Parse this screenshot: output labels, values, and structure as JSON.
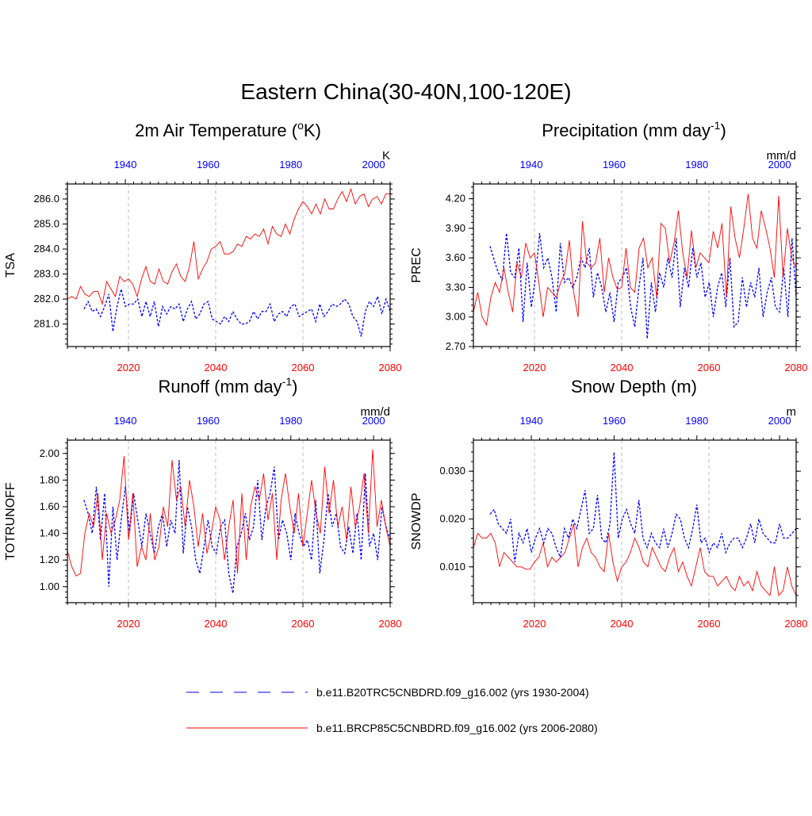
{
  "title": "Eastern China(30-40N,100-120E)",
  "colors": {
    "historical": "#0000ff",
    "future": "#ff0000",
    "frame": "#000000",
    "grid": "#bbbbbb"
  },
  "chart_data": [
    {
      "type": "line",
      "title": "2m Air Temperature (",
      "title_sup": "o",
      "title_tail": "K)",
      "ylabel": "TSA",
      "units": "K",
      "ylim": [
        280.1,
        286.6
      ],
      "yticks": [
        281.0,
        282.0,
        283.0,
        284.0,
        285.0,
        286.0
      ],
      "ytick_labels": [
        "281.0",
        "282.0",
        "283.0",
        "284.0",
        "285.0",
        "286.0"
      ],
      "top_axis": {
        "range": [
          1926,
          2004
        ],
        "ticks": [
          1940,
          1960,
          1980,
          2000
        ],
        "labels": [
          "1940",
          "1960",
          "1980",
          "2000"
        ],
        "color": "#0000ff"
      },
      "bottom_axis": {
        "range": [
          2006,
          2080
        ],
        "ticks": [
          2020,
          2040,
          2060,
          2080
        ],
        "labels": [
          "2020",
          "2040",
          "2060",
          "2080"
        ],
        "color": "#ff0000"
      },
      "series": [
        {
          "name": "b.e11.B20TRC5CNBDRD.f09_g16.002 (yrs 1930-2004)",
          "color": "#0000ff",
          "dash": true,
          "start": 1930,
          "values": [
            281.6,
            281.9,
            281.5,
            281.6,
            281.3,
            281.7,
            282.2,
            280.7,
            281.7,
            282.4,
            281.7,
            281.8,
            281.8,
            282.0,
            281.3,
            281.9,
            281.3,
            281.9,
            280.9,
            281.7,
            281.4,
            281.7,
            281.6,
            281.8,
            281.1,
            281.6,
            281.9,
            281.2,
            281.4,
            281.8,
            281.9,
            281.2,
            281.1,
            281.0,
            281.3,
            281.1,
            281.5,
            281.2,
            281.0,
            281.0,
            281.1,
            281.5,
            281.2,
            281.5,
            281.5,
            281.8,
            281.1,
            281.4,
            281.5,
            281.3,
            281.7,
            281.8,
            281.3,
            281.4,
            281.5,
            281.6,
            281.1,
            281.8,
            281.3,
            281.5,
            281.8,
            281.7,
            281.8,
            282.0,
            281.8,
            281.3,
            281.1,
            280.5,
            281.5,
            281.9,
            281.7,
            282.1,
            281.4,
            282.0,
            281.5
          ]
        },
        {
          "name": "b.e11.BRCP85C5CNBDRD.f09_g16.002 (yrs 2006-2080)",
          "color": "#ff0000",
          "dash": false,
          "start": 2006,
          "values": [
            282.0,
            282.1,
            282.0,
            282.5,
            282.2,
            282.1,
            282.3,
            282.3,
            281.8,
            282.7,
            282.4,
            282.1,
            282.9,
            282.7,
            282.8,
            282.6,
            282.1,
            282.8,
            283.3,
            282.7,
            282.6,
            283.2,
            282.7,
            282.6,
            283.1,
            283.4,
            282.9,
            282.7,
            283.3,
            284.3,
            282.8,
            283.2,
            283.5,
            284.0,
            284.1,
            284.3,
            283.8,
            283.8,
            283.9,
            284.2,
            284.1,
            284.5,
            284.4,
            284.6,
            284.5,
            284.8,
            284.2,
            284.9,
            284.6,
            284.5,
            285.0,
            284.6,
            285.2,
            285.6,
            285.9,
            285.7,
            285.4,
            285.8,
            285.4,
            286.0,
            285.6,
            285.6,
            286.0,
            286.3,
            285.9,
            286.4,
            285.8,
            286.1,
            286.2,
            285.7,
            286.0,
            286.1,
            285.8,
            286.2,
            286.2
          ]
        }
      ]
    },
    {
      "type": "line",
      "title": "Precipitation (mm day",
      "title_sup": "-1",
      "title_tail": ")",
      "ylabel": "PREC",
      "units": "mm/d",
      "ylim": [
        2.7,
        4.35
      ],
      "yticks": [
        2.7,
        3.0,
        3.3,
        3.6,
        3.9,
        4.2
      ],
      "ytick_labels": [
        "2.70",
        "3.00",
        "3.30",
        "3.60",
        "3.90",
        "4.20"
      ],
      "top_axis": {
        "range": [
          1926,
          2004
        ],
        "ticks": [
          1940,
          1960,
          1980,
          2000
        ],
        "labels": [
          "1940",
          "1960",
          "1980",
          "2000"
        ],
        "color": "#0000ff"
      },
      "bottom_axis": {
        "range": [
          2006,
          2080
        ],
        "ticks": [
          2020,
          2040,
          2060,
          2080
        ],
        "labels": [
          "2020",
          "2040",
          "2060",
          "2080"
        ],
        "color": "#ff0000"
      },
      "series": [
        {
          "name": "b.e11.B20TRC5CNBDRD.f09_g16.002 (yrs 1930-2004)",
          "color": "#0000ff",
          "dash": true,
          "start": 1930,
          "values": [
            3.72,
            3.58,
            3.45,
            3.38,
            3.85,
            3.45,
            3.4,
            3.7,
            2.95,
            3.55,
            3.1,
            3.4,
            3.85,
            3.5,
            3.6,
            3.4,
            3.05,
            3.75,
            3.35,
            3.4,
            3.3,
            3.4,
            3.6,
            3.5,
            3.7,
            3.2,
            3.45,
            3.3,
            3.05,
            3.25,
            2.95,
            3.35,
            3.4,
            3.5,
            3.1,
            2.9,
            3.3,
            3.6,
            2.78,
            3.35,
            3.05,
            3.45,
            3.3,
            3.6,
            3.4,
            3.8,
            3.1,
            3.5,
            3.3,
            3.7,
            3.4,
            3.55,
            3.2,
            3.35,
            3.0,
            3.3,
            3.45,
            3.1,
            3.6,
            2.9,
            2.95,
            3.4,
            3.1,
            3.35,
            3.2,
            3.5,
            3.0,
            3.25,
            3.4,
            3.1,
            3.05,
            3.5,
            3.0,
            3.8,
            3.2
          ]
        },
        {
          "name": "b.e11.BRCP85C5CNBDRD.f09_g16.002 (yrs 2006-2080)",
          "color": "#ff0000",
          "dash": false,
          "start": 2006,
          "values": [
            3.05,
            3.25,
            3.0,
            2.92,
            3.2,
            3.35,
            3.25,
            3.5,
            3.25,
            3.05,
            3.55,
            3.4,
            3.75,
            3.6,
            3.65,
            3.35,
            3.0,
            3.3,
            3.25,
            3.2,
            3.35,
            3.45,
            3.78,
            3.25,
            3.0,
            3.97,
            3.55,
            3.5,
            3.55,
            3.8,
            3.25,
            3.6,
            3.4,
            3.28,
            3.3,
            3.7,
            3.3,
            3.25,
            3.7,
            3.8,
            3.5,
            3.6,
            3.2,
            3.95,
            3.9,
            3.55,
            3.75,
            4.08,
            3.65,
            3.4,
            3.88,
            3.5,
            3.65,
            3.6,
            3.55,
            3.87,
            3.7,
            3.95,
            3.2,
            4.12,
            3.8,
            3.6,
            3.9,
            4.25,
            3.8,
            3.7,
            4.08,
            3.9,
            3.7,
            3.4,
            4.23,
            3.4,
            3.9,
            3.6,
            3.5
          ]
        }
      ]
    },
    {
      "type": "line",
      "title": "Runoff (mm day",
      "title_sup": "-1",
      "title_tail": ")",
      "ylabel": "TOTRUNOFF",
      "units": "mm/d",
      "ylim": [
        0.88,
        2.1
      ],
      "yticks": [
        1.0,
        1.2,
        1.4,
        1.6,
        1.8,
        2.0
      ],
      "ytick_labels": [
        "1.00",
        "1.20",
        "1.40",
        "1.60",
        "1.80",
        "2.00"
      ],
      "top_axis": {
        "range": [
          1926,
          2004
        ],
        "ticks": [
          1940,
          1960,
          1980,
          2000
        ],
        "labels": [
          "1940",
          "1960",
          "1980",
          "2000"
        ],
        "color": "#0000ff"
      },
      "bottom_axis": {
        "range": [
          2006,
          2080
        ],
        "ticks": [
          2020,
          2040,
          2060,
          2080
        ],
        "labels": [
          "2020",
          "2040",
          "2060",
          "2080"
        ],
        "color": "#ff0000"
      },
      "series": [
        {
          "name": "b.e11.B20TRC5CNBDRD.f09_g16.002 (yrs 1930-2004)",
          "color": "#0000ff",
          "dash": true,
          "start": 1930,
          "values": [
            1.65,
            1.55,
            1.4,
            1.75,
            1.35,
            1.7,
            1.0,
            1.6,
            1.2,
            1.5,
            1.75,
            1.4,
            1.7,
            1.5,
            1.3,
            1.55,
            1.4,
            1.25,
            1.45,
            1.55,
            1.3,
            1.5,
            1.4,
            1.95,
            1.25,
            1.6,
            1.45,
            1.2,
            1.1,
            1.3,
            1.5,
            1.3,
            1.25,
            1.45,
            1.5,
            1.1,
            0.95,
            1.3,
            1.4,
            1.55,
            1.35,
            1.45,
            1.8,
            1.35,
            1.6,
            1.7,
            1.9,
            1.35,
            1.5,
            1.4,
            1.2,
            1.55,
            1.4,
            1.3,
            1.35,
            1.2,
            1.65,
            1.1,
            1.35,
            1.7,
            1.45,
            1.55,
            1.3,
            1.25,
            1.45,
            1.25,
            1.55,
            1.2,
            1.85,
            1.3,
            1.4,
            1.2,
            1.6,
            1.45,
            1.35
          ]
        },
        {
          "name": "b.e11.BRCP85C5CNBDRD.f09_g16.002 (yrs 2006-2080)",
          "color": "#ff0000",
          "dash": false,
          "start": 2006,
          "values": [
            1.27,
            1.15,
            1.08,
            1.1,
            1.4,
            1.55,
            1.45,
            1.7,
            1.2,
            1.55,
            1.4,
            1.5,
            1.65,
            1.98,
            1.35,
            1.7,
            1.15,
            1.3,
            1.2,
            1.55,
            1.2,
            1.3,
            1.6,
            1.45,
            1.95,
            1.65,
            1.75,
            1.45,
            1.8,
            1.6,
            1.3,
            1.55,
            1.25,
            1.4,
            1.6,
            1.5,
            1.2,
            1.45,
            1.65,
            1.1,
            1.7,
            1.2,
            1.6,
            1.75,
            1.65,
            1.85,
            1.5,
            1.7,
            1.2,
            1.65,
            1.85,
            1.6,
            1.4,
            1.7,
            1.3,
            1.55,
            1.8,
            1.55,
            1.4,
            1.9,
            1.55,
            1.8,
            1.45,
            1.6,
            1.35,
            1.75,
            1.45,
            1.6,
            1.85,
            1.4,
            2.03,
            1.45,
            1.65,
            1.45,
            1.3
          ]
        }
      ]
    },
    {
      "type": "line",
      "title": "Snow Depth (m)",
      "title_sup": "",
      "title_tail": "",
      "ylabel": "SNOWDP",
      "units": "m",
      "ylim": [
        0.0025,
        0.0365
      ],
      "yticks": [
        0.01,
        0.02,
        0.03
      ],
      "ytick_labels": [
        "0.010",
        "0.020",
        "0.030"
      ],
      "top_axis": {
        "range": [
          1926,
          2004
        ],
        "ticks": [
          1940,
          1960,
          1980,
          2000
        ],
        "labels": [
          "1940",
          "1960",
          "1980",
          "2000"
        ],
        "color": "#0000ff"
      },
      "bottom_axis": {
        "range": [
          2006,
          2080
        ],
        "ticks": [
          2020,
          2040,
          2060,
          2080
        ],
        "labels": [
          "2020",
          "2040",
          "2060",
          "2080"
        ],
        "color": "#ff0000"
      },
      "series": [
        {
          "name": "b.e11.B20TRC5CNBDRD.f09_g16.002 (yrs 1930-2004)",
          "color": "#0000ff",
          "dash": true,
          "start": 1930,
          "values": [
            0.021,
            0.022,
            0.019,
            0.018,
            0.017,
            0.02,
            0.011,
            0.017,
            0.015,
            0.018,
            0.013,
            0.016,
            0.018,
            0.015,
            0.018,
            0.017,
            0.014,
            0.012,
            0.018,
            0.016,
            0.02,
            0.018,
            0.022,
            0.026,
            0.017,
            0.018,
            0.025,
            0.016,
            0.015,
            0.019,
            0.034,
            0.016,
            0.02,
            0.022,
            0.019,
            0.017,
            0.024,
            0.016,
            0.014,
            0.017,
            0.015,
            0.014,
            0.018,
            0.014,
            0.017,
            0.021,
            0.02,
            0.016,
            0.014,
            0.018,
            0.023,
            0.015,
            0.016,
            0.013,
            0.015,
            0.014,
            0.017,
            0.013,
            0.015,
            0.016,
            0.016,
            0.014,
            0.016,
            0.019,
            0.015,
            0.02,
            0.017,
            0.016,
            0.015,
            0.015,
            0.019,
            0.016,
            0.016,
            0.017,
            0.018
          ]
        },
        {
          "name": "b.e11.BRCP85C5CNBDRD.f09_g16.002 (yrs 2006-2080)",
          "color": "#ff0000",
          "dash": false,
          "start": 2006,
          "values": [
            0.014,
            0.017,
            0.016,
            0.016,
            0.017,
            0.015,
            0.01,
            0.013,
            0.012,
            0.011,
            0.01,
            0.01,
            0.0095,
            0.0095,
            0.011,
            0.012,
            0.015,
            0.01,
            0.012,
            0.011,
            0.012,
            0.013,
            0.016,
            0.019,
            0.01,
            0.014,
            0.016,
            0.013,
            0.012,
            0.01,
            0.009,
            0.017,
            0.011,
            0.007,
            0.01,
            0.011,
            0.013,
            0.016,
            0.014,
            0.011,
            0.01,
            0.014,
            0.012,
            0.01,
            0.009,
            0.012,
            0.014,
            0.009,
            0.011,
            0.008,
            0.006,
            0.01,
            0.014,
            0.009,
            0.008,
            0.008,
            0.006,
            0.007,
            0.008,
            0.006,
            0.005,
            0.008,
            0.006,
            0.007,
            0.005,
            0.009,
            0.006,
            0.005,
            0.004,
            0.01,
            0.004,
            0.005,
            0.01,
            0.006,
            0.004
          ]
        }
      ]
    }
  ],
  "legend": [
    {
      "label": "b.e11.B20TRC5CNBDRD.f09_g16.002 (yrs 1930-2004)",
      "color": "#0000ff",
      "dash": true
    },
    {
      "label": "b.e11.BRCP85C5CNBDRD.f09_g16.002 (yrs 2006-2080)",
      "color": "#ff0000",
      "dash": false
    }
  ]
}
